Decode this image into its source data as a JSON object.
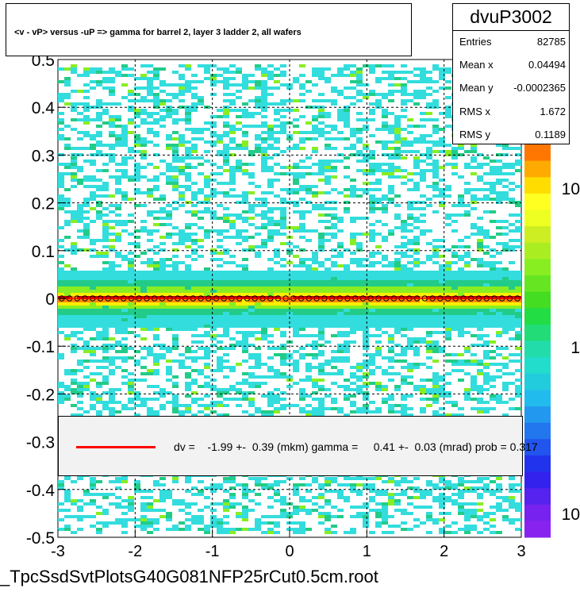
{
  "chart_data": {
    "type": "heatmap",
    "title": "<v - vP>       versus  -uP =>  gamma for barrel 2, layer 3 ladder 2, all wafers",
    "x_ticks": [
      "-3",
      "-2",
      "-1",
      "0",
      "1",
      "2",
      "3"
    ],
    "y_ticks": [
      "-0.5",
      "-0.4",
      "-0.3",
      "-0.2",
      "-0.1",
      "0",
      "0.1",
      "0.2",
      "0.3",
      "0.4",
      "0.5"
    ],
    "xlim": [
      -3,
      3
    ],
    "ylim": [
      -0.5,
      0.5
    ],
    "z_scale": "log",
    "z_ticks": [
      "10",
      "1",
      "10"
    ],
    "grid": true,
    "stats": {
      "name": "dvuP3002",
      "entries_label": "Entries",
      "entries": "82785",
      "meanx_label": "Mean x",
      "meanx": "0.04494",
      "meany_label": "Mean y",
      "meany": "-0.0002365",
      "rmsx_label": "RMS x",
      "rmsx": "1.672",
      "rmsy_label": "RMS y",
      "rmsy": "0.1189"
    },
    "fit": {
      "text": "dv =    -1.99 +-  0.39 (mkm) gamma =     0.41 +-  0.03 (mrad) prob = 0.317",
      "dv": -1.99,
      "dv_err": 0.39,
      "gamma": 0.41,
      "gamma_err": 0.03,
      "prob": 0.317
    },
    "profile_points": {
      "x_start": -2.95,
      "x_end": 2.95,
      "count": 60,
      "y": 0.0
    }
  },
  "footer": "_TpcSsdSvtPlotsG40G081NFP25rCut0.5cm.root",
  "colors": {
    "band_core": "#cc0000",
    "band_mid": "#ff8800",
    "band_outer": "#ffee00",
    "noise": "#33dddd",
    "line": "#ff0000"
  }
}
